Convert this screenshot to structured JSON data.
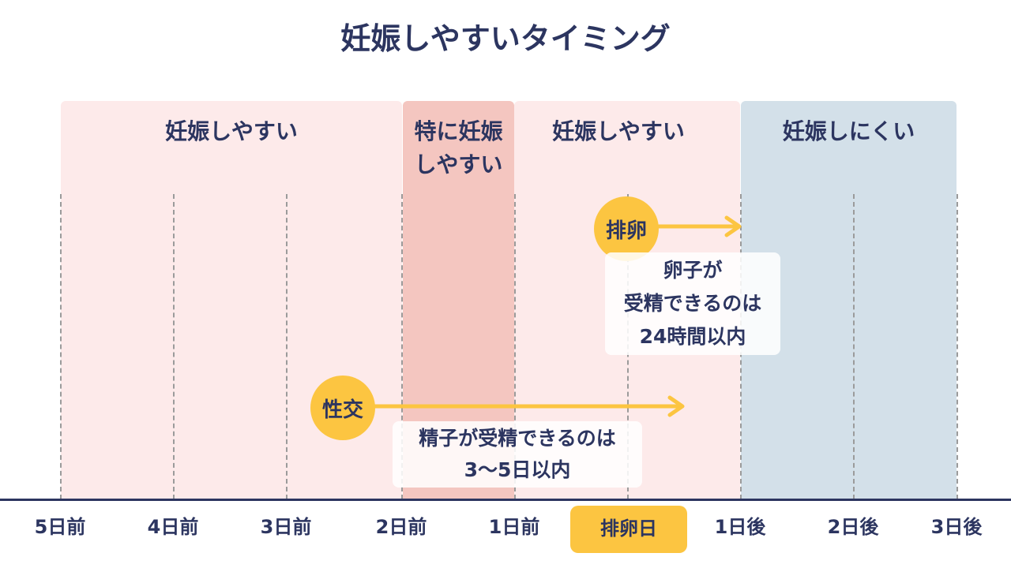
{
  "title": "妊娠しやすいタイミング",
  "zones": {
    "early": "妊娠しやすい",
    "peak": "特に妊娠\nしやすい",
    "late": "妊娠しやすい",
    "after": "妊娠しにくい"
  },
  "events": {
    "ovulation": {
      "label": "排卵",
      "note_line1": "卵子が",
      "note_line2": "受精できるのは",
      "note_line3": "24時間以内"
    },
    "intercourse": {
      "label": "性交",
      "note_line1": "精子が受精できるのは",
      "note_line2": "3〜5日以内"
    }
  },
  "axis": {
    "ticks": [
      "5日前",
      "4日前",
      "3日前",
      "2日前",
      "1日前",
      "排卵日",
      "1日後",
      "2日後",
      "3日後"
    ]
  },
  "colors": {
    "accent": "#fcc541",
    "navy": "#2c3560",
    "pink": "#fdeaea",
    "peak_pink": "#f4c6c0",
    "blue": "#d3e0e9"
  }
}
